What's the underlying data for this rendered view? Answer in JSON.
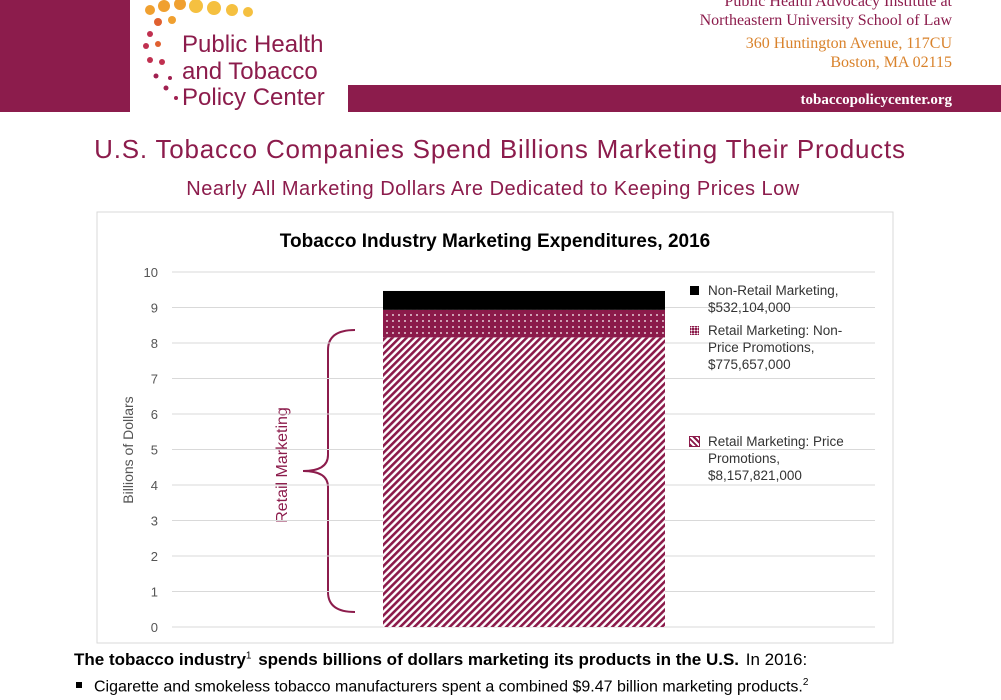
{
  "header": {
    "logo": [
      "Public Health",
      "and Tobacco",
      "Policy Center"
    ],
    "institute": [
      "Public Health Advocacy Institute at",
      "Northeastern University School of Law"
    ],
    "address": [
      "360 Huntington Avenue, 117CU",
      "Boston, MA 02115"
    ],
    "website": "tobaccopolicycenter.org"
  },
  "title": "U.S. Tobacco Companies Spend Billions Marketing Their Products",
  "subtitle": "Nearly All Marketing Dollars Are Dedicated to Keeping Prices Low",
  "chart_data": {
    "type": "stacked_bar",
    "title": "Tobacco Industry Marketing Expenditures, 2016",
    "ylabel": "Billions of Dollars",
    "ylim": [
      0,
      10
    ],
    "yticks": [
      0,
      1,
      2,
      3,
      4,
      5,
      6,
      7,
      8,
      9,
      10
    ],
    "grid": true,
    "annotation": "Retail Marketing",
    "series": [
      {
        "name": "Retail Marketing: Price Promotions,",
        "color": "#8b1a4a",
        "pattern": "hatch",
        "values": [
          8.157821
        ],
        "value_labels": [
          "$8,157,821,000"
        ]
      },
      {
        "name": "Retail Marketing: Non-Price Promotions,",
        "color": "#8b1a4a",
        "pattern": "dots",
        "values": [
          0.775657
        ],
        "value_labels": [
          "$775,657,000"
        ]
      },
      {
        "name": "Non-Retail Marketing,",
        "color": "#000000",
        "pattern": "solid",
        "values": [
          0.532104
        ],
        "value_labels": [
          "$532,104,000"
        ]
      }
    ]
  },
  "body": {
    "lead": [
      "The tobacco industry",
      "1",
      "spends billions of dollars marketing its products in the U.S.",
      "In 2016:"
    ],
    "bullets": [
      [
        "Cigarette and smokeless tobacco manufacturers spent a combined $9.47 billion marketing products.",
        "2"
      ]
    ]
  }
}
